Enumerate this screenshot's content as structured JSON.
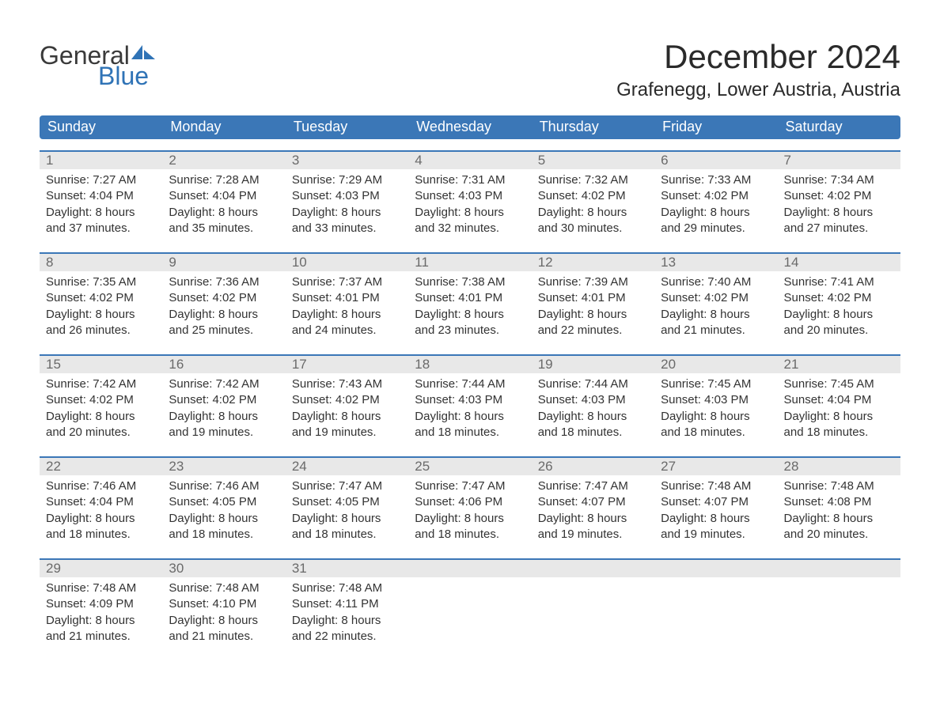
{
  "logo": {
    "word1": "General",
    "word2": "Blue"
  },
  "title": "December 2024",
  "location": "Grafenegg, Lower Austria, Austria",
  "colors": {
    "header_blue": "#3b77b7",
    "logo_blue": "#2f73b6",
    "daynum_bg": "#e8e8e8",
    "text": "#333333",
    "title_text": "#2a2a2a"
  },
  "dayNames": [
    "Sunday",
    "Monday",
    "Tuesday",
    "Wednesday",
    "Thursday",
    "Friday",
    "Saturday"
  ],
  "weeks": [
    [
      {
        "n": "1",
        "sunrise": "Sunrise: 7:27 AM",
        "sunset": "Sunset: 4:04 PM",
        "d1": "Daylight: 8 hours",
        "d2": "and 37 minutes."
      },
      {
        "n": "2",
        "sunrise": "Sunrise: 7:28 AM",
        "sunset": "Sunset: 4:04 PM",
        "d1": "Daylight: 8 hours",
        "d2": "and 35 minutes."
      },
      {
        "n": "3",
        "sunrise": "Sunrise: 7:29 AM",
        "sunset": "Sunset: 4:03 PM",
        "d1": "Daylight: 8 hours",
        "d2": "and 33 minutes."
      },
      {
        "n": "4",
        "sunrise": "Sunrise: 7:31 AM",
        "sunset": "Sunset: 4:03 PM",
        "d1": "Daylight: 8 hours",
        "d2": "and 32 minutes."
      },
      {
        "n": "5",
        "sunrise": "Sunrise: 7:32 AM",
        "sunset": "Sunset: 4:02 PM",
        "d1": "Daylight: 8 hours",
        "d2": "and 30 minutes."
      },
      {
        "n": "6",
        "sunrise": "Sunrise: 7:33 AM",
        "sunset": "Sunset: 4:02 PM",
        "d1": "Daylight: 8 hours",
        "d2": "and 29 minutes."
      },
      {
        "n": "7",
        "sunrise": "Sunrise: 7:34 AM",
        "sunset": "Sunset: 4:02 PM",
        "d1": "Daylight: 8 hours",
        "d2": "and 27 minutes."
      }
    ],
    [
      {
        "n": "8",
        "sunrise": "Sunrise: 7:35 AM",
        "sunset": "Sunset: 4:02 PM",
        "d1": "Daylight: 8 hours",
        "d2": "and 26 minutes."
      },
      {
        "n": "9",
        "sunrise": "Sunrise: 7:36 AM",
        "sunset": "Sunset: 4:02 PM",
        "d1": "Daylight: 8 hours",
        "d2": "and 25 minutes."
      },
      {
        "n": "10",
        "sunrise": "Sunrise: 7:37 AM",
        "sunset": "Sunset: 4:01 PM",
        "d1": "Daylight: 8 hours",
        "d2": "and 24 minutes."
      },
      {
        "n": "11",
        "sunrise": "Sunrise: 7:38 AM",
        "sunset": "Sunset: 4:01 PM",
        "d1": "Daylight: 8 hours",
        "d2": "and 23 minutes."
      },
      {
        "n": "12",
        "sunrise": "Sunrise: 7:39 AM",
        "sunset": "Sunset: 4:01 PM",
        "d1": "Daylight: 8 hours",
        "d2": "and 22 minutes."
      },
      {
        "n": "13",
        "sunrise": "Sunrise: 7:40 AM",
        "sunset": "Sunset: 4:02 PM",
        "d1": "Daylight: 8 hours",
        "d2": "and 21 minutes."
      },
      {
        "n": "14",
        "sunrise": "Sunrise: 7:41 AM",
        "sunset": "Sunset: 4:02 PM",
        "d1": "Daylight: 8 hours",
        "d2": "and 20 minutes."
      }
    ],
    [
      {
        "n": "15",
        "sunrise": "Sunrise: 7:42 AM",
        "sunset": "Sunset: 4:02 PM",
        "d1": "Daylight: 8 hours",
        "d2": "and 20 minutes."
      },
      {
        "n": "16",
        "sunrise": "Sunrise: 7:42 AM",
        "sunset": "Sunset: 4:02 PM",
        "d1": "Daylight: 8 hours",
        "d2": "and 19 minutes."
      },
      {
        "n": "17",
        "sunrise": "Sunrise: 7:43 AM",
        "sunset": "Sunset: 4:02 PM",
        "d1": "Daylight: 8 hours",
        "d2": "and 19 minutes."
      },
      {
        "n": "18",
        "sunrise": "Sunrise: 7:44 AM",
        "sunset": "Sunset: 4:03 PM",
        "d1": "Daylight: 8 hours",
        "d2": "and 18 minutes."
      },
      {
        "n": "19",
        "sunrise": "Sunrise: 7:44 AM",
        "sunset": "Sunset: 4:03 PM",
        "d1": "Daylight: 8 hours",
        "d2": "and 18 minutes."
      },
      {
        "n": "20",
        "sunrise": "Sunrise: 7:45 AM",
        "sunset": "Sunset: 4:03 PM",
        "d1": "Daylight: 8 hours",
        "d2": "and 18 minutes."
      },
      {
        "n": "21",
        "sunrise": "Sunrise: 7:45 AM",
        "sunset": "Sunset: 4:04 PM",
        "d1": "Daylight: 8 hours",
        "d2": "and 18 minutes."
      }
    ],
    [
      {
        "n": "22",
        "sunrise": "Sunrise: 7:46 AM",
        "sunset": "Sunset: 4:04 PM",
        "d1": "Daylight: 8 hours",
        "d2": "and 18 minutes."
      },
      {
        "n": "23",
        "sunrise": "Sunrise: 7:46 AM",
        "sunset": "Sunset: 4:05 PM",
        "d1": "Daylight: 8 hours",
        "d2": "and 18 minutes."
      },
      {
        "n": "24",
        "sunrise": "Sunrise: 7:47 AM",
        "sunset": "Sunset: 4:05 PM",
        "d1": "Daylight: 8 hours",
        "d2": "and 18 minutes."
      },
      {
        "n": "25",
        "sunrise": "Sunrise: 7:47 AM",
        "sunset": "Sunset: 4:06 PM",
        "d1": "Daylight: 8 hours",
        "d2": "and 18 minutes."
      },
      {
        "n": "26",
        "sunrise": "Sunrise: 7:47 AM",
        "sunset": "Sunset: 4:07 PM",
        "d1": "Daylight: 8 hours",
        "d2": "and 19 minutes."
      },
      {
        "n": "27",
        "sunrise": "Sunrise: 7:48 AM",
        "sunset": "Sunset: 4:07 PM",
        "d1": "Daylight: 8 hours",
        "d2": "and 19 minutes."
      },
      {
        "n": "28",
        "sunrise": "Sunrise: 7:48 AM",
        "sunset": "Sunset: 4:08 PM",
        "d1": "Daylight: 8 hours",
        "d2": "and 20 minutes."
      }
    ],
    [
      {
        "n": "29",
        "sunrise": "Sunrise: 7:48 AM",
        "sunset": "Sunset: 4:09 PM",
        "d1": "Daylight: 8 hours",
        "d2": "and 21 minutes."
      },
      {
        "n": "30",
        "sunrise": "Sunrise: 7:48 AM",
        "sunset": "Sunset: 4:10 PM",
        "d1": "Daylight: 8 hours",
        "d2": "and 21 minutes."
      },
      {
        "n": "31",
        "sunrise": "Sunrise: 7:48 AM",
        "sunset": "Sunset: 4:11 PM",
        "d1": "Daylight: 8 hours",
        "d2": "and 22 minutes."
      },
      {
        "empty": true
      },
      {
        "empty": true
      },
      {
        "empty": true
      },
      {
        "empty": true
      }
    ]
  ]
}
